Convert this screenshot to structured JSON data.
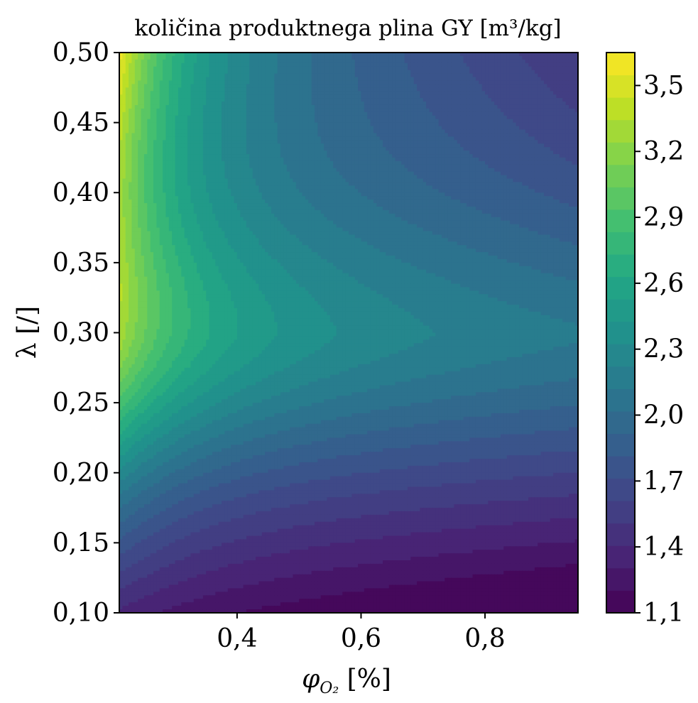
{
  "chart_data": {
    "type": "contour",
    "title": "količina produktnega plina GY [m³/kg]",
    "xlabel": "φ",
    "xlabel_sub": "O₂",
    "xlabel_unit": " [%]",
    "ylabel": "λ [/]",
    "xlim": [
      0.21,
      0.95
    ],
    "ylim": [
      0.1,
      0.5
    ],
    "x_ticks": [
      {
        "value": 0.4,
        "label": "0,4"
      },
      {
        "value": 0.6,
        "label": "0,6"
      },
      {
        "value": 0.8,
        "label": "0,8"
      }
    ],
    "y_ticks": [
      {
        "value": 0.1,
        "label": "0,10"
      },
      {
        "value": 0.15,
        "label": "0,15"
      },
      {
        "value": 0.2,
        "label": "0,20"
      },
      {
        "value": 0.25,
        "label": "0,25"
      },
      {
        "value": 0.3,
        "label": "0,30"
      },
      {
        "value": 0.35,
        "label": "0,35"
      },
      {
        "value": 0.4,
        "label": "0,40"
      },
      {
        "value": 0.45,
        "label": "0,45"
      },
      {
        "value": 0.5,
        "label": "0,50"
      }
    ],
    "colorbar": {
      "colormap": "viridis",
      "range": [
        1.1,
        3.65
      ],
      "levels": 25,
      "ticks": [
        {
          "value": 1.1,
          "label": "1,1"
        },
        {
          "value": 1.4,
          "label": "1,4"
        },
        {
          "value": 1.7,
          "label": "1,7"
        },
        {
          "value": 2.0,
          "label": "2,0"
        },
        {
          "value": 2.3,
          "label": "2,3"
        },
        {
          "value": 2.6,
          "label": "2,6"
        },
        {
          "value": 2.9,
          "label": "2,9"
        },
        {
          "value": 3.2,
          "label": "3,2"
        },
        {
          "value": 3.5,
          "label": "3,5"
        }
      ]
    }
  }
}
